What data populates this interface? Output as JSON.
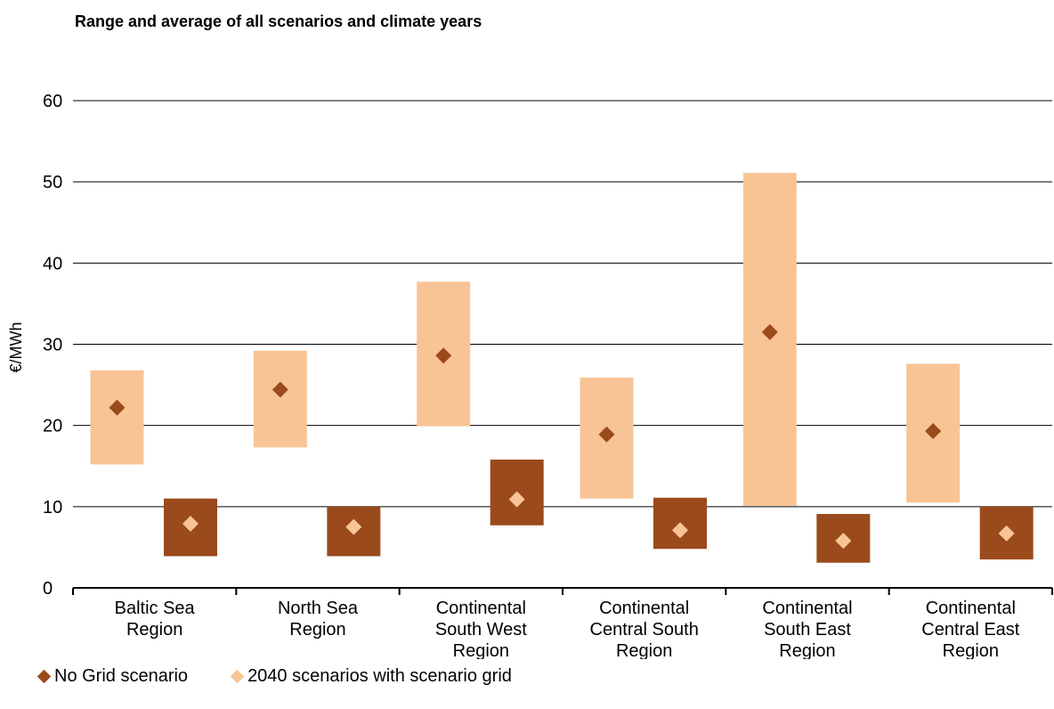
{
  "chart_data": {
    "type": "range",
    "title": "Range and average of all scenarios and climate years",
    "ylabel": "€/MWh",
    "ylim": [
      0,
      60
    ],
    "yticks": [
      0,
      10,
      20,
      30,
      40,
      50,
      60
    ],
    "grid": true,
    "categories": [
      [
        "Baltic Sea",
        "Region"
      ],
      [
        "North Sea",
        "Region"
      ],
      [
        "Continental",
        "South West",
        "Region"
      ],
      [
        "Continental",
        "Central South",
        "Region"
      ],
      [
        "Continental",
        "South East",
        "Region"
      ],
      [
        "Continental",
        "Central East",
        "Region"
      ]
    ],
    "series": [
      {
        "name": "No Grid scenario",
        "bar_color": "#f8c496",
        "marker_color": "#9b4a1b",
        "min": [
          15.2,
          17.3,
          19.9,
          11.0,
          10.1,
          10.5
        ],
        "max": [
          26.8,
          29.2,
          37.7,
          25.9,
          51.1,
          27.6
        ],
        "avg": [
          22.2,
          24.4,
          28.6,
          18.9,
          31.5,
          19.3
        ]
      },
      {
        "name": "2040 scenarios with scenario grid",
        "bar_color": "#9b4a1b",
        "marker_color": "#f8c496",
        "min": [
          3.9,
          3.9,
          7.7,
          4.8,
          3.1,
          3.5
        ],
        "max": [
          11.0,
          10.0,
          15.8,
          11.1,
          9.1,
          10.0
        ],
        "avg": [
          7.9,
          7.5,
          10.9,
          7.1,
          5.8,
          6.7
        ]
      }
    ],
    "legend_position": "bottom-left"
  }
}
